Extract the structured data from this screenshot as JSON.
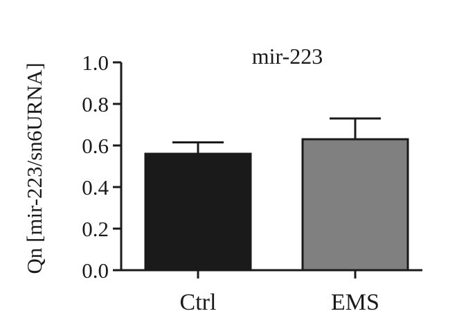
{
  "chart_data": {
    "type": "bar",
    "title": "mir-223",
    "ylabel": "Qn [mir-223/sn6URNA]",
    "xlabel": "",
    "ylim": [
      0,
      1.0
    ],
    "yticks": [
      "0.0",
      "0.2",
      "0.4",
      "0.6",
      "0.8",
      "1.0"
    ],
    "categories": [
      "Ctrl",
      "EMS"
    ],
    "values": [
      0.56,
      0.63
    ],
    "errors": [
      0.055,
      0.1
    ],
    "colors": [
      "#1a1a1a",
      "#808080"
    ],
    "grid": false,
    "legend": "none"
  }
}
